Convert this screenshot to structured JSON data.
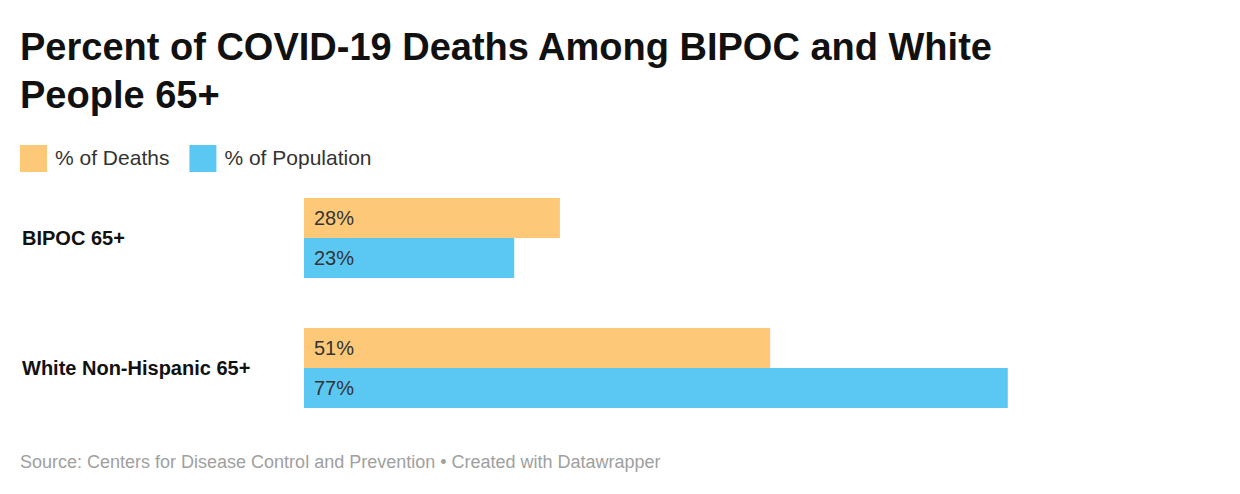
{
  "chart_data": {
    "type": "bar",
    "title": "Percent of COVID-19 Deaths Among BIPOC and White People 65+",
    "orientation": "horizontal",
    "categories": [
      "BIPOC 65+",
      "White Non-Hispanic 65+"
    ],
    "series": [
      {
        "name": "% of Deaths",
        "color": "#fdc979",
        "values": [
          28,
          51
        ],
        "value_labels": [
          "28%",
          "51%"
        ]
      },
      {
        "name": "% of Population",
        "color": "#5bc8f4",
        "values": [
          23,
          77
        ],
        "value_labels": [
          "23%",
          "77%"
        ]
      }
    ],
    "xlim": [
      0,
      100
    ],
    "tick_labels": false,
    "grid": false,
    "data_labels": true,
    "legend": "top-left",
    "source": "Source: Centers for Disease Control and Prevention • Created with Datawrapper"
  }
}
